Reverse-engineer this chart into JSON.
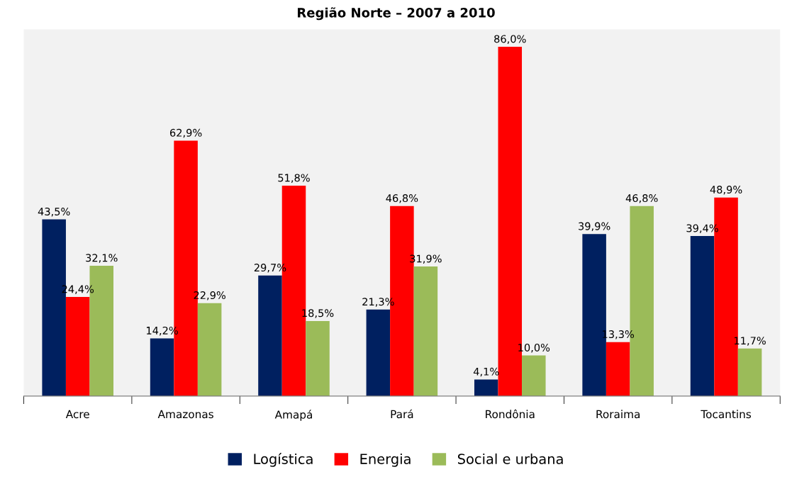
{
  "chart_data": {
    "type": "bar",
    "title": "Região Norte – 2007 a 2010",
    "categories": [
      "Acre",
      "Amazonas",
      "Amapá",
      "Pará",
      "Rondônia",
      "Roraima",
      "Tocantins"
    ],
    "series": [
      {
        "name": "Logística",
        "color": "#002060",
        "values": [
          43.5,
          14.2,
          29.7,
          21.3,
          4.1,
          39.9,
          39.4
        ],
        "value_labels": [
          "43,5%",
          "14,2%",
          "29,7%",
          "21,3%",
          "4,1%",
          "39,9%",
          "39,4%"
        ]
      },
      {
        "name": "Energia",
        "color": "#ff0000",
        "values": [
          24.4,
          62.9,
          51.8,
          46.8,
          86.0,
          13.3,
          48.9
        ],
        "value_labels": [
          "24,4%",
          "62,9%",
          "51,8%",
          "46,8%",
          "86,0%",
          "13,3%",
          "48,9%"
        ]
      },
      {
        "name": "Social e urbana",
        "color": "#9bbb59",
        "values": [
          32.1,
          22.9,
          18.5,
          31.9,
          10.0,
          46.8,
          11.7
        ],
        "value_labels": [
          "32,1%",
          "22,9%",
          "18,5%",
          "31,9%",
          "10,0%",
          "46,8%",
          "11,7%"
        ]
      }
    ],
    "legend": "bottom",
    "grid": false
  }
}
